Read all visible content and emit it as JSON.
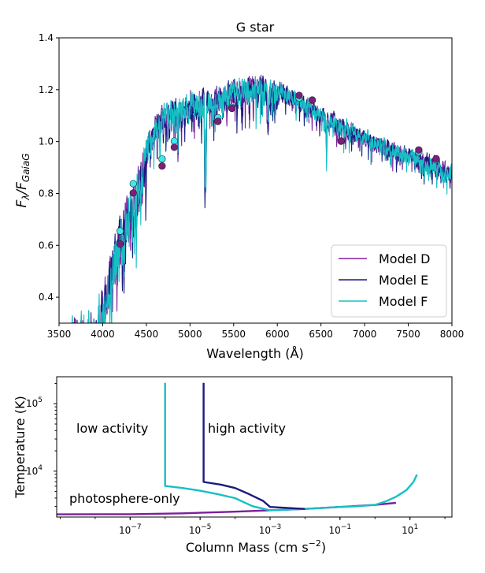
{
  "colors": {
    "model_d": "#7e1e9c",
    "model_e": "#1a1a80",
    "model_f": "#17bfc4",
    "dot_e": "#7a1f80",
    "dot_f": "#3ee8ee"
  },
  "chart_data": [
    {
      "type": "line",
      "title": "G star",
      "xlabel": "Wavelength (Å)",
      "ylabel_main": "F",
      "ylabel_sub_lambda": "λ",
      "ylabel_sep": "/F",
      "ylabel_sub_gaia": "GaiaG",
      "xlim": [
        3500,
        8000
      ],
      "ylim": [
        0.3,
        1.4
      ],
      "xticks": [
        3500,
        4000,
        4500,
        5000,
        5500,
        6000,
        6500,
        7000,
        7500,
        8000
      ],
      "xtick_labels": [
        "3500",
        "4000",
        "4500",
        "5000",
        "5500",
        "6000",
        "6500",
        "7000",
        "7500",
        "8000"
      ],
      "yticks": [
        0.4,
        0.6,
        0.8,
        1.0,
        1.2,
        1.4
      ],
      "ytick_labels": [
        "0.4",
        "0.6",
        "0.8",
        "1.0",
        "1.2",
        "1.4"
      ],
      "envelope": {
        "x": [
          3500,
          3700,
          3900,
          4000,
          4100,
          4200,
          4300,
          4400,
          4500,
          4600,
          4700,
          4800,
          4900,
          5000,
          5100,
          5200,
          5300,
          5400,
          5500,
          5600,
          5700,
          5800,
          5900,
          6000,
          6200,
          6400,
          6600,
          6800,
          7000,
          7200,
          7400,
          7600,
          7800,
          8000
        ],
        "y": [
          0.3,
          0.36,
          0.4,
          0.48,
          0.64,
          0.74,
          0.84,
          0.95,
          1.05,
          1.12,
          1.16,
          1.18,
          1.2,
          1.21,
          1.22,
          1.23,
          1.24,
          1.25,
          1.26,
          1.27,
          1.28,
          1.28,
          1.27,
          1.25,
          1.21,
          1.17,
          1.13,
          1.09,
          1.06,
          1.03,
          1.0,
          0.98,
          0.95,
          0.92
        ]
      },
      "series": [
        {
          "name": "Model D",
          "color_key": "model_d",
          "seed": 11
        },
        {
          "name": "Model E",
          "color_key": "model_e",
          "seed": 23
        },
        {
          "name": "Model F",
          "color_key": "model_f",
          "seed": 37
        }
      ],
      "photometry": {
        "x": [
          4200,
          4350,
          4680,
          4820,
          5320,
          5480,
          6250,
          6400,
          6730,
          7620,
          7820
        ],
        "model_e": [
          0.605,
          0.802,
          0.906,
          0.978,
          1.078,
          1.128,
          1.178,
          1.16,
          1.002,
          0.968,
          0.934
        ],
        "model_f": [
          0.655,
          0.838,
          0.933,
          1.002,
          1.092,
          1.132,
          1.168,
          1.16,
          1.002,
          0.96,
          0.93
        ]
      },
      "legend": [
        "Model D",
        "Model E",
        "Model F"
      ],
      "legend_position": "lower-right"
    },
    {
      "type": "line",
      "xlabel_main": "Column Mass (cm s",
      "xlabel_sup": "−2",
      "xlabel_end": ")",
      "ylabel": "Temperature (K)",
      "xscale": "log",
      "yscale": "log",
      "xlim_log10": [
        -9.1,
        2.2
      ],
      "ylim_log10": [
        3.32,
        5.4
      ],
      "xticks_log10": [
        -7,
        -5,
        -3,
        -1,
        1
      ],
      "xtick_labels": [
        {
          "base": "10",
          "exp": "−7"
        },
        {
          "base": "10",
          "exp": "−5"
        },
        {
          "base": "10",
          "exp": "−3"
        },
        {
          "base": "10",
          "exp": "−1"
        },
        {
          "base": "10",
          "exp": "1"
        }
      ],
      "yticks_log10": [
        4,
        5
      ],
      "ytick_labels": [
        {
          "base": "10",
          "exp": "4"
        },
        {
          "base": "10",
          "exp": "5"
        }
      ],
      "series": [
        {
          "name": "photosphere-only",
          "color_key": "model_d",
          "log_m": [
            -9.1,
            -7,
            -5.5,
            -4,
            -3,
            -2,
            -1,
            0,
            0.6
          ],
          "log_t": [
            3.36,
            3.362,
            3.375,
            3.4,
            3.42,
            3.44,
            3.47,
            3.5,
            3.53
          ]
        },
        {
          "name": "low activity",
          "color_key": "model_f",
          "log_m": [
            -6.0,
            -6.0,
            -5.5,
            -5.0,
            -4.5,
            -4.0,
            -3.5,
            -3.0,
            -2.0,
            -1.0,
            -0.5,
            0.0,
            0.3,
            0.6,
            0.9,
            1.1,
            1.2
          ],
          "log_t": [
            5.31,
            3.78,
            3.75,
            3.71,
            3.66,
            3.6,
            3.48,
            3.42,
            3.44,
            3.47,
            3.48,
            3.5,
            3.55,
            3.62,
            3.72,
            3.84,
            3.95
          ]
        },
        {
          "name": "high activity",
          "color_key": "model_e",
          "log_m": [
            -4.9,
            -4.9,
            -4.4,
            -4.0,
            -3.6,
            -3.2,
            -3.0,
            -2.0
          ],
          "log_t": [
            5.31,
            3.84,
            3.8,
            3.75,
            3.66,
            3.56,
            3.47,
            3.44
          ]
        }
      ],
      "annotations": [
        "low activity",
        "high activity",
        "photosphere-only"
      ]
    }
  ]
}
